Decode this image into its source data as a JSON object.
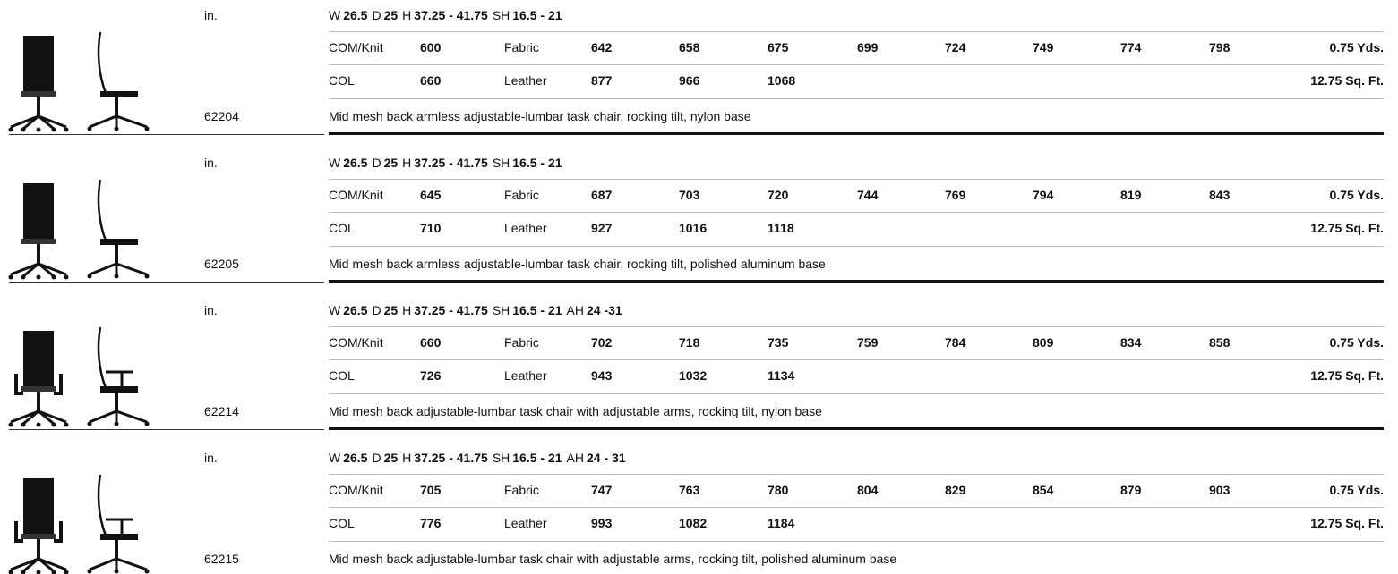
{
  "products": [
    {
      "unit": "in.",
      "dimensions": [
        {
          "label": "W",
          "value": "26.5"
        },
        {
          "label": "D",
          "value": "25"
        },
        {
          "label": "H",
          "value": "37.25 - 41.75"
        },
        {
          "label": "SH",
          "value": "16.5 - 21"
        }
      ],
      "rows": [
        {
          "grade": "COM/Knit",
          "price": 600,
          "material": "Fabric",
          "prices": [
            642,
            658,
            675,
            699,
            724,
            749,
            774,
            798
          ],
          "quantity": "0.75 Yds."
        },
        {
          "grade": "COL",
          "price": 660,
          "material": "Leather",
          "prices": [
            877,
            966,
            1068
          ],
          "quantity": "12.75 Sq. Ft."
        }
      ],
      "model": "62204",
      "description": "Mid mesh back armless adjustable-lumbar task chair, rocking tilt, nylon base"
    },
    {
      "unit": "in.",
      "dimensions": [
        {
          "label": "W",
          "value": "26.5"
        },
        {
          "label": "D",
          "value": "25"
        },
        {
          "label": "H",
          "value": "37.25 - 41.75"
        },
        {
          "label": "SH",
          "value": "16.5 - 21"
        }
      ],
      "rows": [
        {
          "grade": "COM/Knit",
          "price": 645,
          "material": "Fabric",
          "prices": [
            687,
            703,
            720,
            744,
            769,
            794,
            819,
            843
          ],
          "quantity": "0.75 Yds."
        },
        {
          "grade": "COL",
          "price": 710,
          "material": "Leather",
          "prices": [
            927,
            1016,
            1118
          ],
          "quantity": "12.75 Sq. Ft."
        }
      ],
      "model": "62205",
      "description": "Mid mesh back armless adjustable-lumbar task chair, rocking tilt, polished aluminum base"
    },
    {
      "unit": "in.",
      "dimensions": [
        {
          "label": "W",
          "value": "26.5"
        },
        {
          "label": "D",
          "value": "25"
        },
        {
          "label": "H",
          "value": "37.25 - 41.75"
        },
        {
          "label": "SH",
          "value": "16.5 - 21"
        },
        {
          "label": "AH",
          "value": "24 -31"
        }
      ],
      "rows": [
        {
          "grade": "COM/Knit",
          "price": 660,
          "material": "Fabric",
          "prices": [
            702,
            718,
            735,
            759,
            784,
            809,
            834,
            858
          ],
          "quantity": "0.75 Yds."
        },
        {
          "grade": "COL",
          "price": 726,
          "material": "Leather",
          "prices": [
            943,
            1032,
            1134
          ],
          "quantity": "12.75 Sq. Ft."
        }
      ],
      "model": "62214",
      "description": "Mid mesh back adjustable-lumbar task chair with adjustable arms, rocking tilt, nylon base"
    },
    {
      "unit": "in.",
      "dimensions": [
        {
          "label": "W",
          "value": "26.5"
        },
        {
          "label": "D",
          "value": "25"
        },
        {
          "label": "H",
          "value": "37.25 - 41.75"
        },
        {
          "label": "SH",
          "value": "16.5 - 21"
        },
        {
          "label": "AH",
          "value": "24 - 31"
        }
      ],
      "rows": [
        {
          "grade": "COM/Knit",
          "price": 705,
          "material": "Fabric",
          "prices": [
            747,
            763,
            780,
            804,
            829,
            854,
            879,
            903
          ],
          "quantity": "0.75 Yds."
        },
        {
          "grade": "COL",
          "price": 776,
          "material": "Leather",
          "prices": [
            993,
            1082,
            1184
          ],
          "quantity": "12.75 Sq. Ft."
        }
      ],
      "model": "62215",
      "description": "Mid mesh back adjustable-lumbar task chair with adjustable arms, rocking tilt, polished aluminum base"
    }
  ]
}
